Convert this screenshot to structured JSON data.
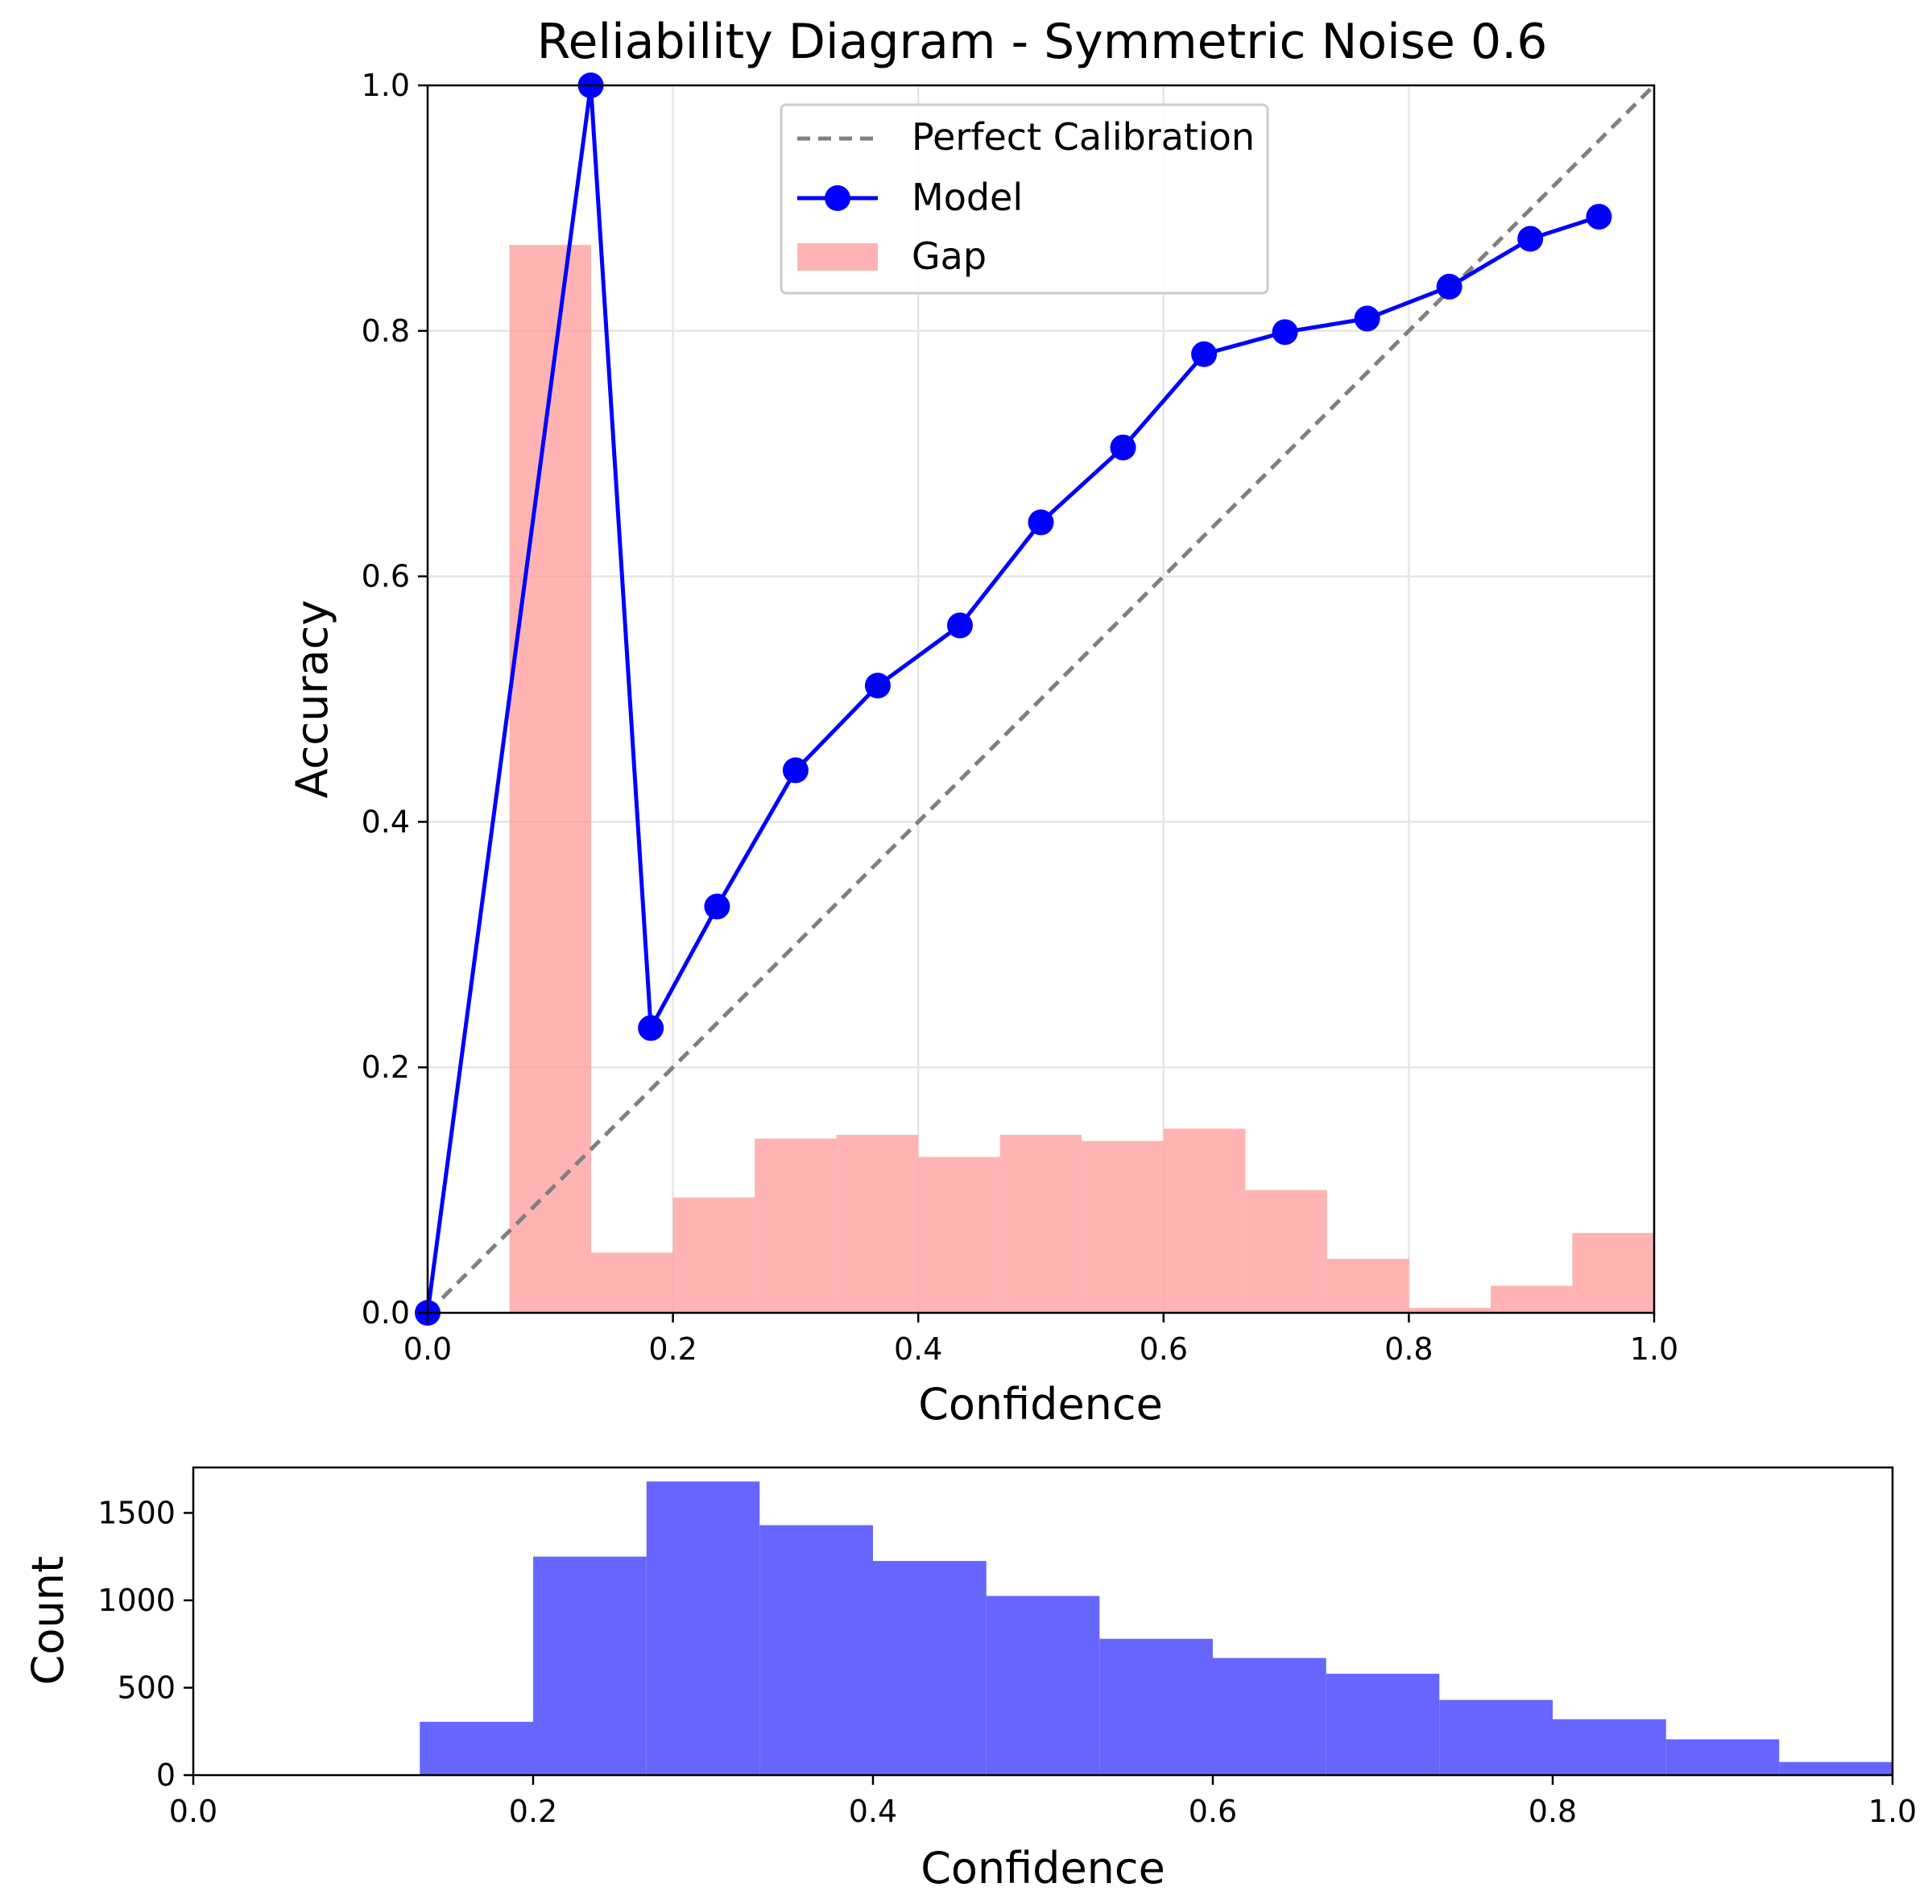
{
  "colors": {
    "model": "#0000ff",
    "gap": "#ff9999",
    "perfect": "#808080",
    "hist": "#6666ff",
    "grid": "#e6e6e6"
  },
  "chart_data": [
    {
      "type": "line",
      "title": "Reliability Diagram - Symmetric Noise 0.6",
      "xlabel": "Confidence",
      "ylabel": "Accuracy",
      "xlim": [
        0.0,
        1.0
      ],
      "ylim": [
        0.0,
        1.0
      ],
      "xticks": [
        "0.0",
        "0.2",
        "0.4",
        "0.6",
        "0.8",
        "1.0"
      ],
      "yticks": [
        "0.0",
        "0.2",
        "0.4",
        "0.6",
        "0.8",
        "1.0"
      ],
      "grid": true,
      "legend_position": "top-center",
      "legend": [
        "Perfect Calibration",
        "Model",
        "Gap"
      ],
      "perfect_calibration": {
        "x": [
          0.0,
          1.0
        ],
        "y": [
          0.0,
          1.0
        ]
      },
      "series": [
        {
          "name": "Model",
          "x": [
            0.0,
            0.133,
            0.182,
            0.236,
            0.3,
            0.367,
            0.434,
            0.5,
            0.567,
            0.633,
            0.699,
            0.766,
            0.833,
            0.899,
            0.955
          ],
          "y": [
            0.0,
            1.0,
            0.232,
            0.331,
            0.442,
            0.511,
            0.56,
            0.644,
            0.705,
            0.781,
            0.799,
            0.81,
            0.836,
            0.875,
            0.893
          ]
        }
      ],
      "gap_bars": {
        "name": "Gap",
        "bin_edges": [
          0.0,
          0.0667,
          0.1333,
          0.2,
          0.2667,
          0.3333,
          0.4,
          0.4667,
          0.5333,
          0.6,
          0.6667,
          0.7333,
          0.8,
          0.8667,
          0.9333,
          1.0
        ],
        "values": [
          0.0,
          0.87,
          0.049,
          0.094,
          0.142,
          0.145,
          0.127,
          0.145,
          0.14,
          0.15,
          0.1,
          0.044,
          0.004,
          0.022,
          0.065
        ]
      }
    },
    {
      "type": "bar",
      "xlabel": "Confidence",
      "ylabel": "Count",
      "xlim": [
        0.0,
        1.0
      ],
      "ylim": [
        0,
        1760
      ],
      "xticks": [
        "0.0",
        "0.2",
        "0.4",
        "0.6",
        "0.8",
        "1.0"
      ],
      "yticks": [
        "0",
        "500",
        "1000",
        "1500"
      ],
      "grid": false,
      "bin_edges": [
        0.0,
        0.0667,
        0.1333,
        0.2,
        0.2667,
        0.3333,
        0.4,
        0.4667,
        0.5333,
        0.6,
        0.6667,
        0.7333,
        0.8,
        0.8667,
        0.9333,
        1.0
      ],
      "values": [
        0,
        0,
        305,
        1250,
        1680,
        1430,
        1225,
        1025,
        780,
        670,
        580,
        430,
        320,
        205,
        75
      ]
    }
  ]
}
